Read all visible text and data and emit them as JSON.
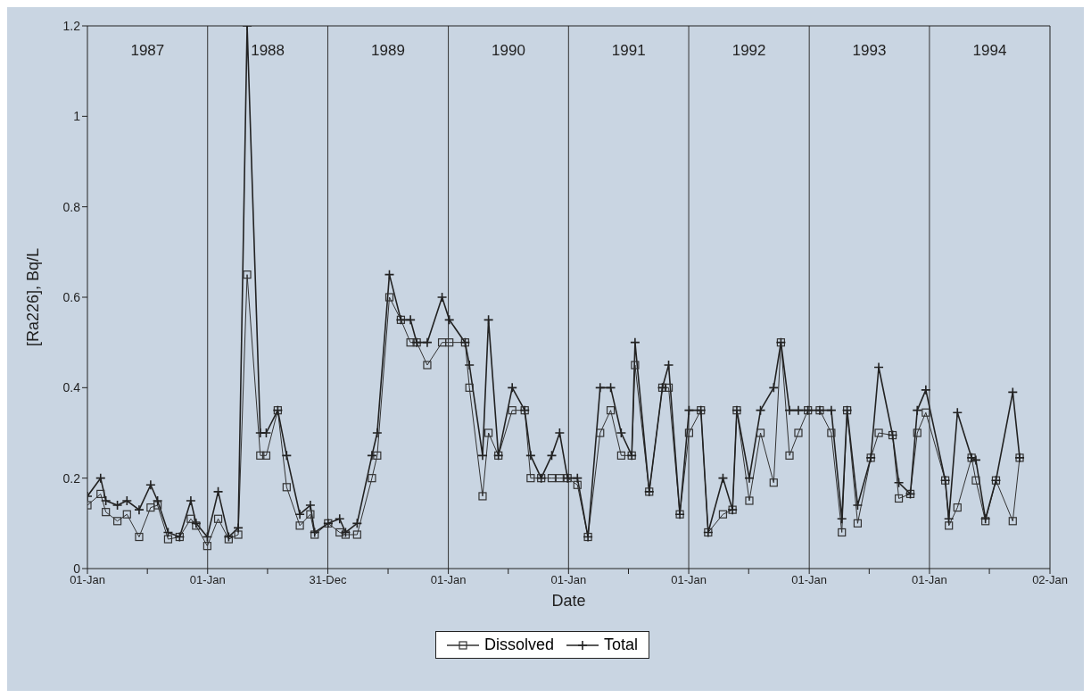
{
  "chart_data": {
    "type": "line",
    "xlabel": "Date",
    "ylabel": "[Ra226], Bq/L",
    "x": [
      "1987-01-01",
      "1987-02-10",
      "1987-02-26",
      "1987-04-02",
      "1987-05-01",
      "1987-06-07",
      "1987-07-12",
      "1987-08-02",
      "1987-09-03",
      "1987-10-08",
      "1987-11-11",
      "1987-11-27",
      "1987-12-31",
      "1988-02-02",
      "1988-03-05",
      "1988-04-03",
      "1988-04-30",
      "1988-06-09",
      "1988-06-27",
      "1988-08-01",
      "1988-08-28",
      "1988-10-07",
      "1988-11-08",
      "1988-11-21",
      "1989-01-01",
      "1989-02-05",
      "1989-02-23",
      "1989-03-30",
      "1989-05-14",
      "1989-05-30",
      "1989-07-06",
      "1989-08-10",
      "1989-09-08",
      "1989-09-27",
      "1989-10-29",
      "1989-12-13",
      "1990-01-04",
      "1990-02-21",
      "1990-03-06",
      "1990-04-15",
      "1990-05-03",
      "1990-06-02",
      "1990-07-14",
      "1990-08-21",
      "1990-09-08",
      "1990-10-10",
      "1990-11-11",
      "1990-12-05",
      "1990-12-29",
      "1991-01-28",
      "1991-03-01",
      "1991-04-07",
      "1991-05-09",
      "1991-06-10",
      "1991-07-12",
      "1991-07-22",
      "1991-09-03",
      "1991-10-13",
      "1991-11-01",
      "1991-12-05",
      "1992-01-02",
      "1992-02-07",
      "1992-02-29",
      "1992-04-14",
      "1992-05-13",
      "1992-05-26",
      "1992-07-03",
      "1992-08-06",
      "1992-09-15",
      "1992-10-07",
      "1992-11-02",
      "1992-11-29",
      "1992-12-28",
      "1993-02-02",
      "1993-03-09",
      "1993-04-10",
      "1993-04-26",
      "1993-05-28",
      "1993-07-07",
      "1993-07-31",
      "1993-09-11",
      "1993-09-30",
      "1993-11-04",
      "1993-11-25",
      "1993-12-21",
      "1994-02-18",
      "1994-03-01",
      "1994-03-27",
      "1994-05-09",
      "1994-05-22",
      "1994-06-20",
      "1994-07-22",
      "1994-09-11",
      "1994-10-02"
    ],
    "series": [
      {
        "name": "Dissolved",
        "color": "#333333",
        "marker": "square",
        "values": [
          0.14,
          0.165,
          0.125,
          0.105,
          0.12,
          0.07,
          0.135,
          0.14,
          0.065,
          0.07,
          0.11,
          0.095,
          0.05,
          0.11,
          0.065,
          0.075,
          0.65,
          0.25,
          0.25,
          0.35,
          0.18,
          0.095,
          0.12,
          0.075,
          0.1,
          0.08,
          0.075,
          0.075,
          0.2,
          0.25,
          0.6,
          0.55,
          0.5,
          0.5,
          0.45,
          0.5,
          0.5,
          0.5,
          0.4,
          0.16,
          0.3,
          0.25,
          0.35,
          0.35,
          0.2,
          0.2,
          0.2,
          0.2,
          0.2,
          0.185,
          0.07,
          0.3,
          0.35,
          0.25,
          0.25,
          0.45,
          0.17,
          0.4,
          0.4,
          0.12,
          0.3,
          0.35,
          0.08,
          0.12,
          0.13,
          0.35,
          0.15,
          0.3,
          0.19,
          0.5,
          0.25,
          0.3,
          0.35,
          0.35,
          0.3,
          0.08,
          0.35,
          0.1,
          0.245,
          0.3,
          0.295,
          0.155,
          0.165,
          0.3,
          0.345,
          0.195,
          0.095,
          0.135,
          0.245,
          0.195,
          0.105,
          0.195,
          0.105,
          0.245
        ]
      },
      {
        "name": "Total",
        "color": "#222222",
        "marker": "cross",
        "values": [
          0.16,
          0.2,
          0.15,
          0.14,
          0.15,
          0.13,
          0.185,
          0.15,
          0.08,
          0.07,
          0.15,
          0.1,
          0.07,
          0.17,
          0.07,
          0.09,
          1.2,
          0.3,
          0.3,
          0.35,
          0.25,
          0.12,
          0.14,
          0.08,
          0.1,
          0.11,
          0.08,
          0.1,
          0.25,
          0.3,
          0.65,
          0.55,
          0.55,
          0.5,
          0.5,
          0.6,
          0.55,
          0.5,
          0.45,
          0.25,
          0.55,
          0.25,
          0.4,
          0.35,
          0.25,
          0.2,
          0.25,
          0.3,
          0.2,
          0.2,
          0.07,
          0.4,
          0.4,
          0.3,
          0.25,
          0.5,
          0.17,
          0.4,
          0.45,
          0.12,
          0.35,
          0.35,
          0.08,
          0.2,
          0.13,
          0.35,
          0.2,
          0.35,
          0.4,
          0.5,
          0.35,
          0.35,
          0.35,
          0.35,
          0.35,
          0.11,
          0.35,
          0.14,
          0.245,
          0.445,
          0.295,
          0.19,
          0.165,
          0.35,
          0.395,
          0.195,
          0.11,
          0.345,
          0.245,
          0.24,
          0.11,
          0.195,
          0.39,
          0.245
        ]
      }
    ],
    "xlim": [
      "1987-01-01",
      "1995-01-02"
    ],
    "xticks": [
      {
        "value": "1987-01-01",
        "label": "01-Jan"
      },
      {
        "value": "1987-07-02",
        "label": null
      },
      {
        "value": "1988-01-01",
        "label": "01-Jan"
      },
      {
        "value": "1988-07-01",
        "label": null
      },
      {
        "value": "1988-12-31",
        "label": "31-Dec"
      },
      {
        "value": "1989-07-02",
        "label": null
      },
      {
        "value": "1990-01-01",
        "label": "01-Jan"
      },
      {
        "value": "1990-07-02",
        "label": null
      },
      {
        "value": "1991-01-01",
        "label": "01-Jan"
      },
      {
        "value": "1991-07-02",
        "label": null
      },
      {
        "value": "1992-01-01",
        "label": "01-Jan"
      },
      {
        "value": "1992-07-01",
        "label": null
      },
      {
        "value": "1993-01-01",
        "label": "01-Jan"
      },
      {
        "value": "1993-07-02",
        "label": null
      },
      {
        "value": "1994-01-01",
        "label": "01-Jan"
      },
      {
        "value": "1994-07-02",
        "label": null
      },
      {
        "value": "1995-01-02",
        "label": "02-Jan"
      }
    ],
    "ylim": [
      0,
      1.2
    ],
    "yticks": [
      0,
      0.2,
      0.4,
      0.6,
      0.8,
      1,
      1.2
    ],
    "ref_lines": [
      {
        "axis": "x",
        "value": "1988-01-01",
        "color": "#333333"
      },
      {
        "axis": "x",
        "value": "1988-12-31",
        "color": "#333333"
      },
      {
        "axis": "x",
        "value": "1990-01-01",
        "color": "#333333"
      },
      {
        "axis": "x",
        "value": "1991-01-01",
        "color": "#333333"
      },
      {
        "axis": "x",
        "value": "1992-01-01",
        "color": "#333333"
      },
      {
        "axis": "x",
        "value": "1993-01-01",
        "color": "#333333"
      },
      {
        "axis": "x",
        "value": "1994-01-01",
        "color": "#333333"
      }
    ],
    "annotations": [
      "1987",
      "1988",
      "1989",
      "1990",
      "1991",
      "1992",
      "1993",
      "1994"
    ],
    "grid": false,
    "legend": "bottom",
    "line_style": "solid"
  }
}
